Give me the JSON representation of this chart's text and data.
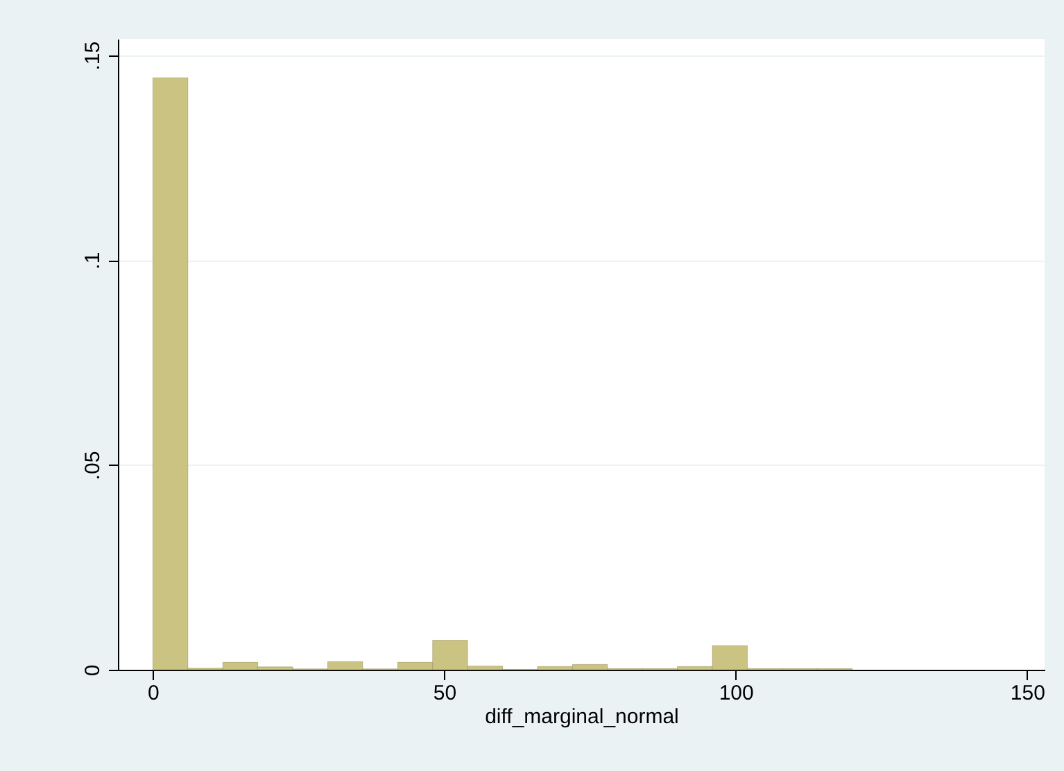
{
  "chart_data": {
    "type": "histogram",
    "xlabel": "diff_marginal_normal",
    "color": "#cbc382",
    "bins": [
      0,
      6,
      12,
      18,
      24,
      30,
      36,
      42,
      48,
      54,
      60,
      66,
      72,
      78,
      84,
      90,
      96,
      102,
      108,
      114,
      120
    ],
    "values": [
      0.1445,
      0.0004,
      0.0018,
      0.0007,
      0.0002,
      0.002,
      0.0002,
      0.0018,
      0.0072,
      0.0009,
      0.0001,
      0.0008,
      0.0013,
      0.0003,
      0.0003,
      0.0008,
      0.0059,
      0.0003,
      0.0003,
      0.0003
    ],
    "xlim": [
      -6,
      153
    ],
    "ylim": [
      0,
      0.154
    ],
    "xticks": [
      0,
      50,
      100,
      150
    ],
    "yticks": [
      {
        "value": 0,
        "label": "0"
      },
      {
        "value": 0.05,
        "label": ".05"
      },
      {
        "value": 0.1,
        "label": ".1"
      },
      {
        "value": 0.15,
        "label": ".15"
      }
    ],
    "grid": "y"
  }
}
